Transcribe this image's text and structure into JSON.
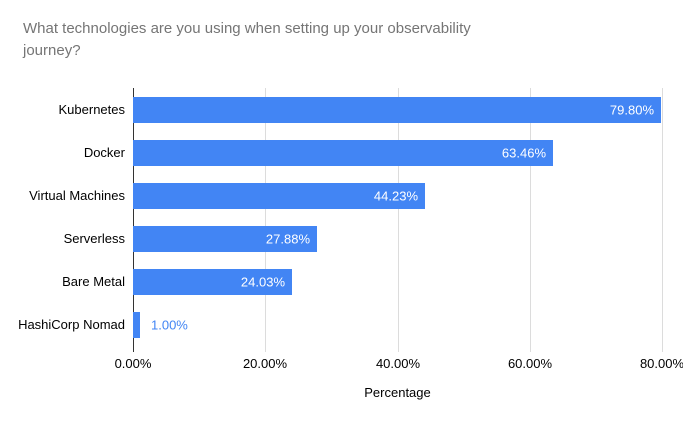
{
  "title": "What technologies are you using when setting up your observability journey?",
  "chart_data": {
    "type": "bar",
    "orientation": "horizontal",
    "title": "What technologies are you using when setting up your observability journey?",
    "categories": [
      "Kubernetes",
      "Docker",
      "Virtual Machines",
      "Serverless",
      "Bare Metal",
      "HashiCorp Nomad"
    ],
    "values": [
      79.8,
      63.46,
      44.23,
      27.88,
      24.03,
      1.0
    ],
    "value_labels": [
      "79.80%",
      "63.46%",
      "44.23%",
      "27.88%",
      "24.03%",
      "1.00%"
    ],
    "xlabel": "Percentage",
    "ylabel": "",
    "x_ticks": [
      "0.00%",
      "20.00%",
      "40.00%",
      "60.00%",
      "80.00%"
    ],
    "x_tick_values": [
      0,
      20,
      40,
      60,
      80
    ],
    "xlim": [
      0,
      80
    ],
    "grid": true,
    "legend": "none",
    "colors": {
      "bar": "#4285f4",
      "value_label_inside": "#ffffff",
      "value_label_outside": "#4285f4",
      "title_text": "#757575",
      "axis_text": "#000000",
      "gridline": "#dcdcdc",
      "axis_line": "#333333",
      "background": "#ffffff"
    }
  }
}
